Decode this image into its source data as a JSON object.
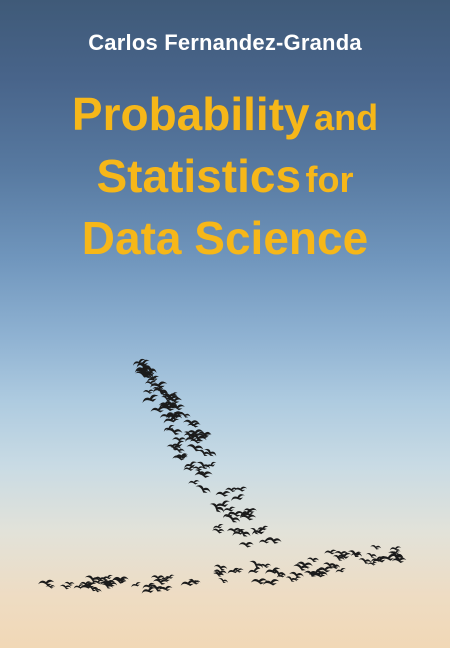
{
  "cover": {
    "author": "Carlos Fernandez-Granda",
    "title_line1_big": "Probability",
    "title_line1_small": "and",
    "title_line2_big": "Statistics",
    "title_line2_small": "for",
    "title_line3": "Data Science",
    "colors": {
      "title": "#f6b719",
      "author": "#ffffff",
      "birds": "#1b1b1b"
    }
  },
  "illustration": {
    "icon": "bird-flock-icon"
  }
}
